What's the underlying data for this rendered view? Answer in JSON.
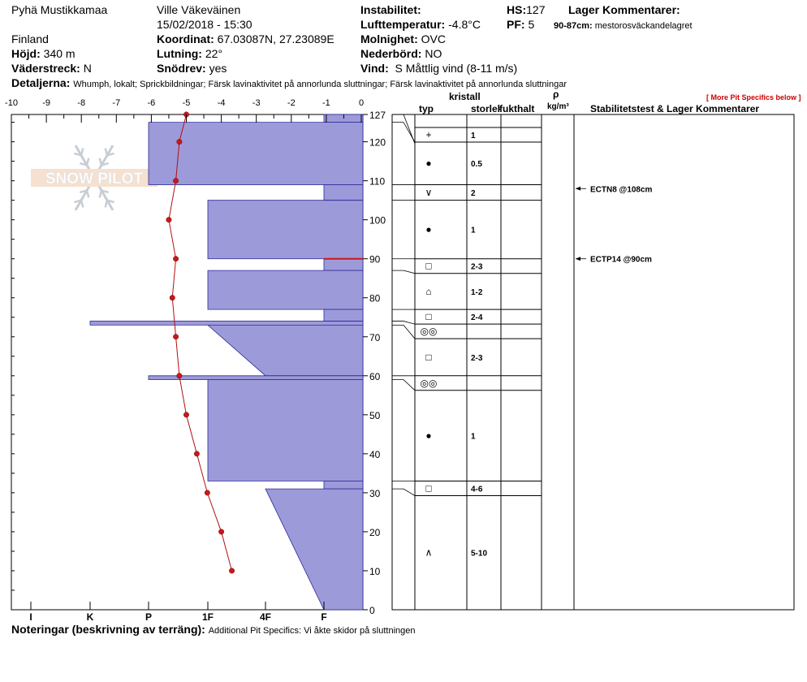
{
  "header": {
    "location": "Pyhä Mustikkamaa",
    "observer": "Ville Väkeväinen",
    "datetime": "15/02/2018 - 15:30",
    "country": "Finland",
    "coords_label": "Koordinat:",
    "coords_value": "67.03087N, 27.23089E",
    "elev_label": "Höjd:",
    "elev_value": "340 m",
    "slope_label": "Lutning:",
    "slope_value": "22°",
    "aspect_label": "Väderstreck:",
    "aspect_value": "N",
    "drift_label": "Snödrev:",
    "drift_value": "yes",
    "instab_label": "Instabilitet:",
    "airtemp_label": "Lufttemperatur:",
    "airtemp_value": "-4.8°C",
    "sky_label": "Molnighet:",
    "sky_value": "OVC",
    "precip_label": "Nederbörd:",
    "precip_value": "NO",
    "wind_label": "Vind:",
    "wind_value": "S Måttlig vind (8-11 m/s)",
    "hs_label": "HS:",
    "hs_value": "127",
    "pf_label": "PF:",
    "pf_value": "5",
    "layer_comments_label": "Lager Kommentarer:",
    "layer_comment_range": "90-87cm:",
    "layer_comment_text": "mestorosväckandelagret",
    "details_label": "Detaljerna:",
    "details_value": "Whumph, lokalt;  Sprickbildningar;  Färsk lavinaktivitet på annorlunda sluttningar;  Färsk lavinaktivitet på annorlunda sluttningar",
    "more_link": "[ More Pit Specifics below ]",
    "notes_label": "Noteringar (beskrivning av terräng):",
    "notes_value": "Additional Pit Specifics: Vi åkte skidor på sluttningen"
  },
  "columns": {
    "crystal": "kristall",
    "type": "typ",
    "size": "storlek",
    "moisture": "fukthalt",
    "rho": "ρ",
    "density_unit": "kg/m³",
    "stability": "Stabilitetstest & Lager Kommentarer"
  },
  "logo": {
    "text": "SNOW PILOT"
  },
  "colors": {
    "hardness_fill": "#9d9ad9",
    "hardness_stroke": "#2b2b9a",
    "temp_line": "#b01010",
    "temp_point": "#c81818",
    "weak_layer": "#c81818"
  },
  "chart_data": {
    "type": "snow_profile",
    "height_axis": {
      "min": 0,
      "max": 127,
      "ticks": [
        0,
        10,
        20,
        30,
        40,
        50,
        60,
        70,
        80,
        90,
        100,
        110,
        120,
        127
      ]
    },
    "temperature_axis": {
      "min": -10,
      "max": 0,
      "ticks": [
        "-10",
        "-9",
        "-8",
        "-7",
        "-6",
        "-5",
        "-4",
        "-3",
        "-2",
        "-1",
        "0"
      ]
    },
    "hardness_axis": {
      "labels": [
        "I",
        "K",
        "P",
        "1F",
        "4F",
        "F"
      ]
    },
    "temperature_profile": [
      {
        "h": 127,
        "t": -5.0
      },
      {
        "h": 120,
        "t": -5.2
      },
      {
        "h": 110,
        "t": -5.3
      },
      {
        "h": 100,
        "t": -5.5
      },
      {
        "h": 90,
        "t": -5.3
      },
      {
        "h": 80,
        "t": -5.4
      },
      {
        "h": 70,
        "t": -5.3
      },
      {
        "h": 60,
        "t": -5.2
      },
      {
        "h": 50,
        "t": -5.0
      },
      {
        "h": 40,
        "t": -4.7
      },
      {
        "h": 30,
        "t": -4.4
      },
      {
        "h": 20,
        "t": -4.0
      },
      {
        "h": 10,
        "t": -3.7
      }
    ],
    "layers": [
      {
        "top": 127,
        "bottom": 125,
        "hardness_top": "F",
        "hardness_bottom": "F",
        "grain": "+",
        "size": "1"
      },
      {
        "top": 125,
        "bottom": 109,
        "hardness_top": "P",
        "hardness_bottom": "P",
        "grain": "●",
        "size": "0.5"
      },
      {
        "top": 109,
        "bottom": 105,
        "hardness_top": "F",
        "hardness_bottom": "F",
        "grain": "∨",
        "size": "2"
      },
      {
        "top": 105,
        "bottom": 90,
        "hardness_top": "1F",
        "hardness_bottom": "1F",
        "grain": "●",
        "size": "1"
      },
      {
        "top": 90,
        "bottom": 87,
        "hardness_top": "F",
        "hardness_bottom": "F",
        "grain": "□",
        "size": "2-3"
      },
      {
        "top": 87,
        "bottom": 77,
        "hardness_top": "1F",
        "hardness_bottom": "1F",
        "grain": "⌂",
        "size": "1-2"
      },
      {
        "top": 77,
        "bottom": 74,
        "hardness_top": "F",
        "hardness_bottom": "F",
        "grain": "□",
        "size": "2-4"
      },
      {
        "top": 74,
        "bottom": 73,
        "hardness_top": "K",
        "hardness_bottom": "K",
        "grain": "◎◎",
        "size": ""
      },
      {
        "top": 73,
        "bottom": 60,
        "hardness_top": "1F",
        "hardness_bottom": "4F",
        "grain": "□",
        "size": "2-3"
      },
      {
        "top": 60,
        "bottom": 59,
        "hardness_top": "P",
        "hardness_bottom": "P",
        "grain": "◎◎",
        "size": ""
      },
      {
        "top": 59,
        "bottom": 33,
        "hardness_top": "1F",
        "hardness_bottom": "1F",
        "grain": "●",
        "size": "1"
      },
      {
        "top": 33,
        "bottom": 31,
        "hardness_top": "F",
        "hardness_bottom": "F",
        "grain": "□",
        "size": "4-6"
      },
      {
        "top": 31,
        "bottom": 0,
        "hardness_top": "4F",
        "hardness_bottom": "F",
        "grain": "∧",
        "size": "5-10"
      }
    ],
    "weak_layer_height": 90,
    "stability_tests": [
      {
        "height": 108,
        "label": "ECTN8 @108cm"
      },
      {
        "height": 90,
        "label": "ECTP14 @90cm"
      }
    ]
  }
}
